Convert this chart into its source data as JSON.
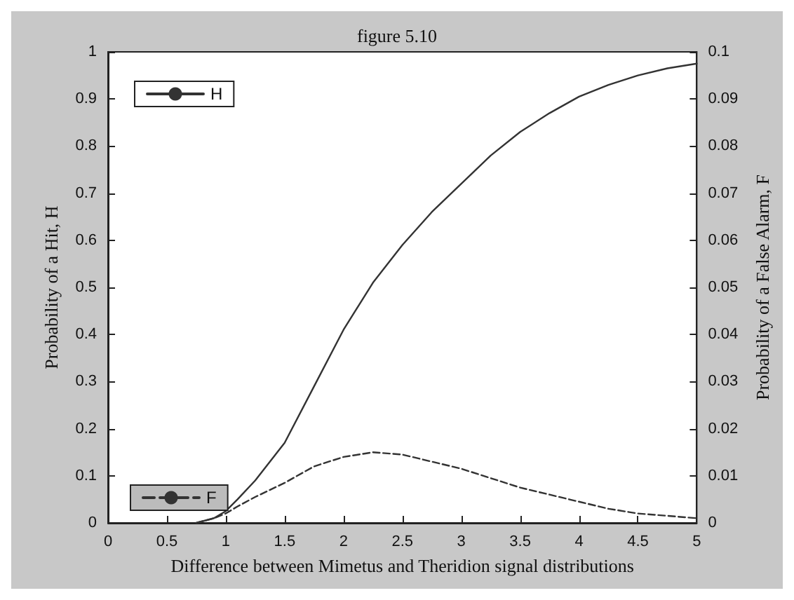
{
  "chart_data": {
    "type": "line",
    "title": "figure 5.10",
    "xlabel": "Difference between Mimetus and Theridion signal distributions",
    "ylabel": "Probability of a Hit, H",
    "y2label": "Probability of a False Alarm, F",
    "x": [
      0.75,
      0.9,
      1,
      1.1,
      1.25,
      1.5,
      1.75,
      2,
      2.25,
      2.5,
      2.75,
      3,
      3.25,
      3.5,
      3.75,
      4,
      4.25,
      4.5,
      4.75,
      5
    ],
    "series": [
      {
        "name": "H",
        "color": "#333333",
        "line_style": "solid",
        "values": [
          0,
          0.01,
          0.025,
          0.05,
          0.09,
          0.17,
          0.29,
          0.41,
          0.51,
          0.59,
          0.66,
          0.72,
          0.78,
          0.83,
          0.87,
          0.905,
          0.93,
          0.95,
          0.965,
          0.975
        ]
      },
      {
        "name": "F",
        "color": "#333333",
        "line_style": "dashed",
        "axis": "y2",
        "values": [
          0,
          0.001,
          0.002,
          0.0035,
          0.0055,
          0.0085,
          0.012,
          0.014,
          0.015,
          0.0145,
          0.013,
          0.0115,
          0.0095,
          0.0075,
          0.006,
          0.0045,
          0.003,
          0.002,
          0.0015,
          0.001
        ]
      }
    ],
    "xlim": [
      0,
      5
    ],
    "xticks": [
      0,
      0.5,
      1,
      1.5,
      2,
      2.5,
      3,
      3.5,
      4,
      4.5,
      5
    ],
    "ylim": [
      0,
      1
    ],
    "yticks": [
      0,
      0.1,
      0.2,
      0.3,
      0.4,
      0.5,
      0.6,
      0.7,
      0.8,
      0.9,
      1
    ],
    "y2lim": [
      0,
      0.1
    ],
    "y2ticks": [
      0,
      0.01,
      0.02,
      0.03,
      0.04,
      0.05,
      0.06,
      0.07,
      0.08,
      0.09,
      0.1
    ],
    "grid": false,
    "marker": "none",
    "legend": "left"
  }
}
